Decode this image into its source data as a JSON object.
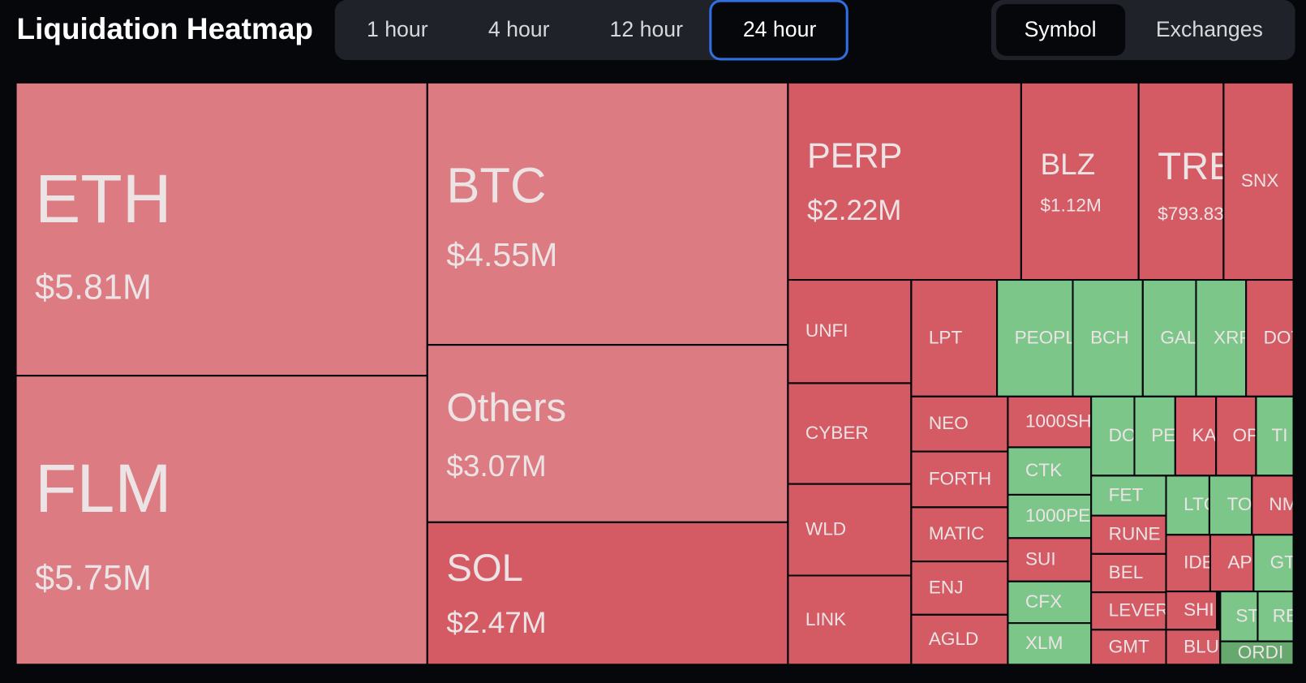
{
  "header": {
    "title": "Liquidation Heatmap",
    "time_tabs": [
      "1 hour",
      "4 hour",
      "12 hour",
      "24 hour"
    ],
    "active_time_tab": 3,
    "view_tabs": [
      "Symbol",
      "Exchanges"
    ],
    "active_view_tab": 0
  },
  "tiles": [
    {
      "label": "ETH",
      "value": "$5.81M",
      "color": "#dc7b82"
    },
    {
      "label": "FLM",
      "value": "$5.75M",
      "color": "#dc7b82"
    },
    {
      "label": "BTC",
      "value": "$4.55M",
      "color": "#dc7b82"
    },
    {
      "label": "Others",
      "value": "$3.07M",
      "color": "#dc7b82"
    },
    {
      "label": "SOL",
      "value": "$2.47M",
      "color": "#d45b64"
    },
    {
      "label": "PERP",
      "value": "$2.22M",
      "color": "#d45b64"
    },
    {
      "label": "BLZ",
      "value": "$1.12M",
      "color": "#d45b64"
    },
    {
      "label": "TRE",
      "value": "$793.83",
      "color": "#d45b64"
    },
    {
      "label": "SNX",
      "color": "#d45b64"
    },
    {
      "label": "UNFI",
      "color": "#d45b64"
    },
    {
      "label": "LPT",
      "color": "#d45b64"
    },
    {
      "label": "PEOPL",
      "color": "#7cc68a"
    },
    {
      "label": "BCH",
      "color": "#7cc68a"
    },
    {
      "label": "GAL",
      "color": "#7cc68a"
    },
    {
      "label": "XRP",
      "color": "#7cc68a"
    },
    {
      "label": "DOT",
      "color": "#d45b64"
    },
    {
      "label": "CYBER",
      "color": "#d45b64"
    },
    {
      "label": "WLD",
      "color": "#d45b64"
    },
    {
      "label": "LINK",
      "color": "#d45b64"
    },
    {
      "label": "NEO",
      "color": "#d45b64"
    },
    {
      "label": "FORTH",
      "color": "#d45b64"
    },
    {
      "label": "MATIC",
      "color": "#d45b64"
    },
    {
      "label": "ENJ",
      "color": "#d45b64"
    },
    {
      "label": "AGLD",
      "color": "#d45b64"
    },
    {
      "label": "1000SH",
      "color": "#d45b64"
    },
    {
      "label": "CTK",
      "color": "#7cc68a"
    },
    {
      "label": "1000PE",
      "color": "#7cc68a"
    },
    {
      "label": "SUI",
      "color": "#d45b64"
    },
    {
      "label": "CFX",
      "color": "#7cc68a"
    },
    {
      "label": "XLM",
      "color": "#7cc68a"
    },
    {
      "label": "DO",
      "color": "#7cc68a"
    },
    {
      "label": "PE",
      "color": "#7cc68a"
    },
    {
      "label": "KA",
      "color": "#d45b64"
    },
    {
      "label": "OP",
      "color": "#d45b64"
    },
    {
      "label": "TI",
      "color": "#7cc68a"
    },
    {
      "label": "FET",
      "color": "#7cc68a"
    },
    {
      "label": "RUNE",
      "color": "#d45b64"
    },
    {
      "label": "BEL",
      "color": "#d45b64"
    },
    {
      "label": "LEVER",
      "color": "#d45b64"
    },
    {
      "label": "GMT",
      "color": "#d45b64"
    },
    {
      "label": "LTC",
      "color": "#7cc68a"
    },
    {
      "label": "TO",
      "color": "#7cc68a"
    },
    {
      "label": "NM",
      "color": "#d45b64"
    },
    {
      "label": "IDE",
      "color": "#d45b64"
    },
    {
      "label": "AP",
      "color": "#d45b64"
    },
    {
      "label": "GT",
      "color": "#7cc68a"
    },
    {
      "label": "SHI",
      "color": "#d45b64"
    },
    {
      "label": "BLU",
      "color": "#d45b64"
    },
    {
      "label": "ST",
      "color": "#7cc68a"
    },
    {
      "label": "RE",
      "color": "#7cc68a"
    },
    {
      "label": "ORDI",
      "color": "#66a86e"
    }
  ]
}
